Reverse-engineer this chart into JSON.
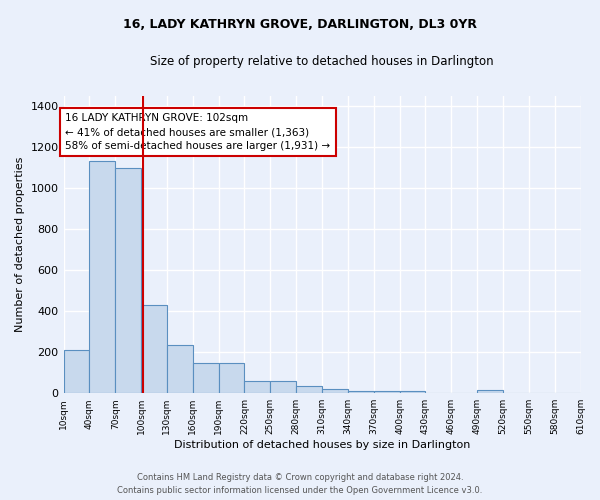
{
  "title": "16, LADY KATHRYN GROVE, DARLINGTON, DL3 0YR",
  "subtitle": "Size of property relative to detached houses in Darlington",
  "xlabel": "Distribution of detached houses by size in Darlington",
  "ylabel": "Number of detached properties",
  "annotation_line1": "16 LADY KATHRYN GROVE: 102sqm",
  "annotation_line2": "← 41% of detached houses are smaller (1,363)",
  "annotation_line3": "58% of semi-detached houses are larger (1,931) →",
  "property_sqm": 102,
  "bar_color": "#c8d9ed",
  "bar_edge_color": "#5a8fc0",
  "red_line_x": 102,
  "bins": [
    10,
    40,
    70,
    100,
    130,
    160,
    190,
    220,
    250,
    280,
    310,
    340,
    370,
    400,
    430,
    460,
    490,
    520,
    550,
    580,
    610
  ],
  "bar_heights": [
    210,
    1130,
    1095,
    430,
    235,
    148,
    148,
    60,
    60,
    35,
    20,
    12,
    12,
    12,
    0,
    0,
    18,
    0,
    0,
    0
  ],
  "ylim": [
    0,
    1450
  ],
  "yticks": [
    0,
    200,
    400,
    600,
    800,
    1000,
    1200,
    1400
  ],
  "background_color": "#eaf0fb",
  "grid_color": "#ffffff",
  "footer_line1": "Contains HM Land Registry data © Crown copyright and database right 2024.",
  "footer_line2": "Contains public sector information licensed under the Open Government Licence v3.0."
}
